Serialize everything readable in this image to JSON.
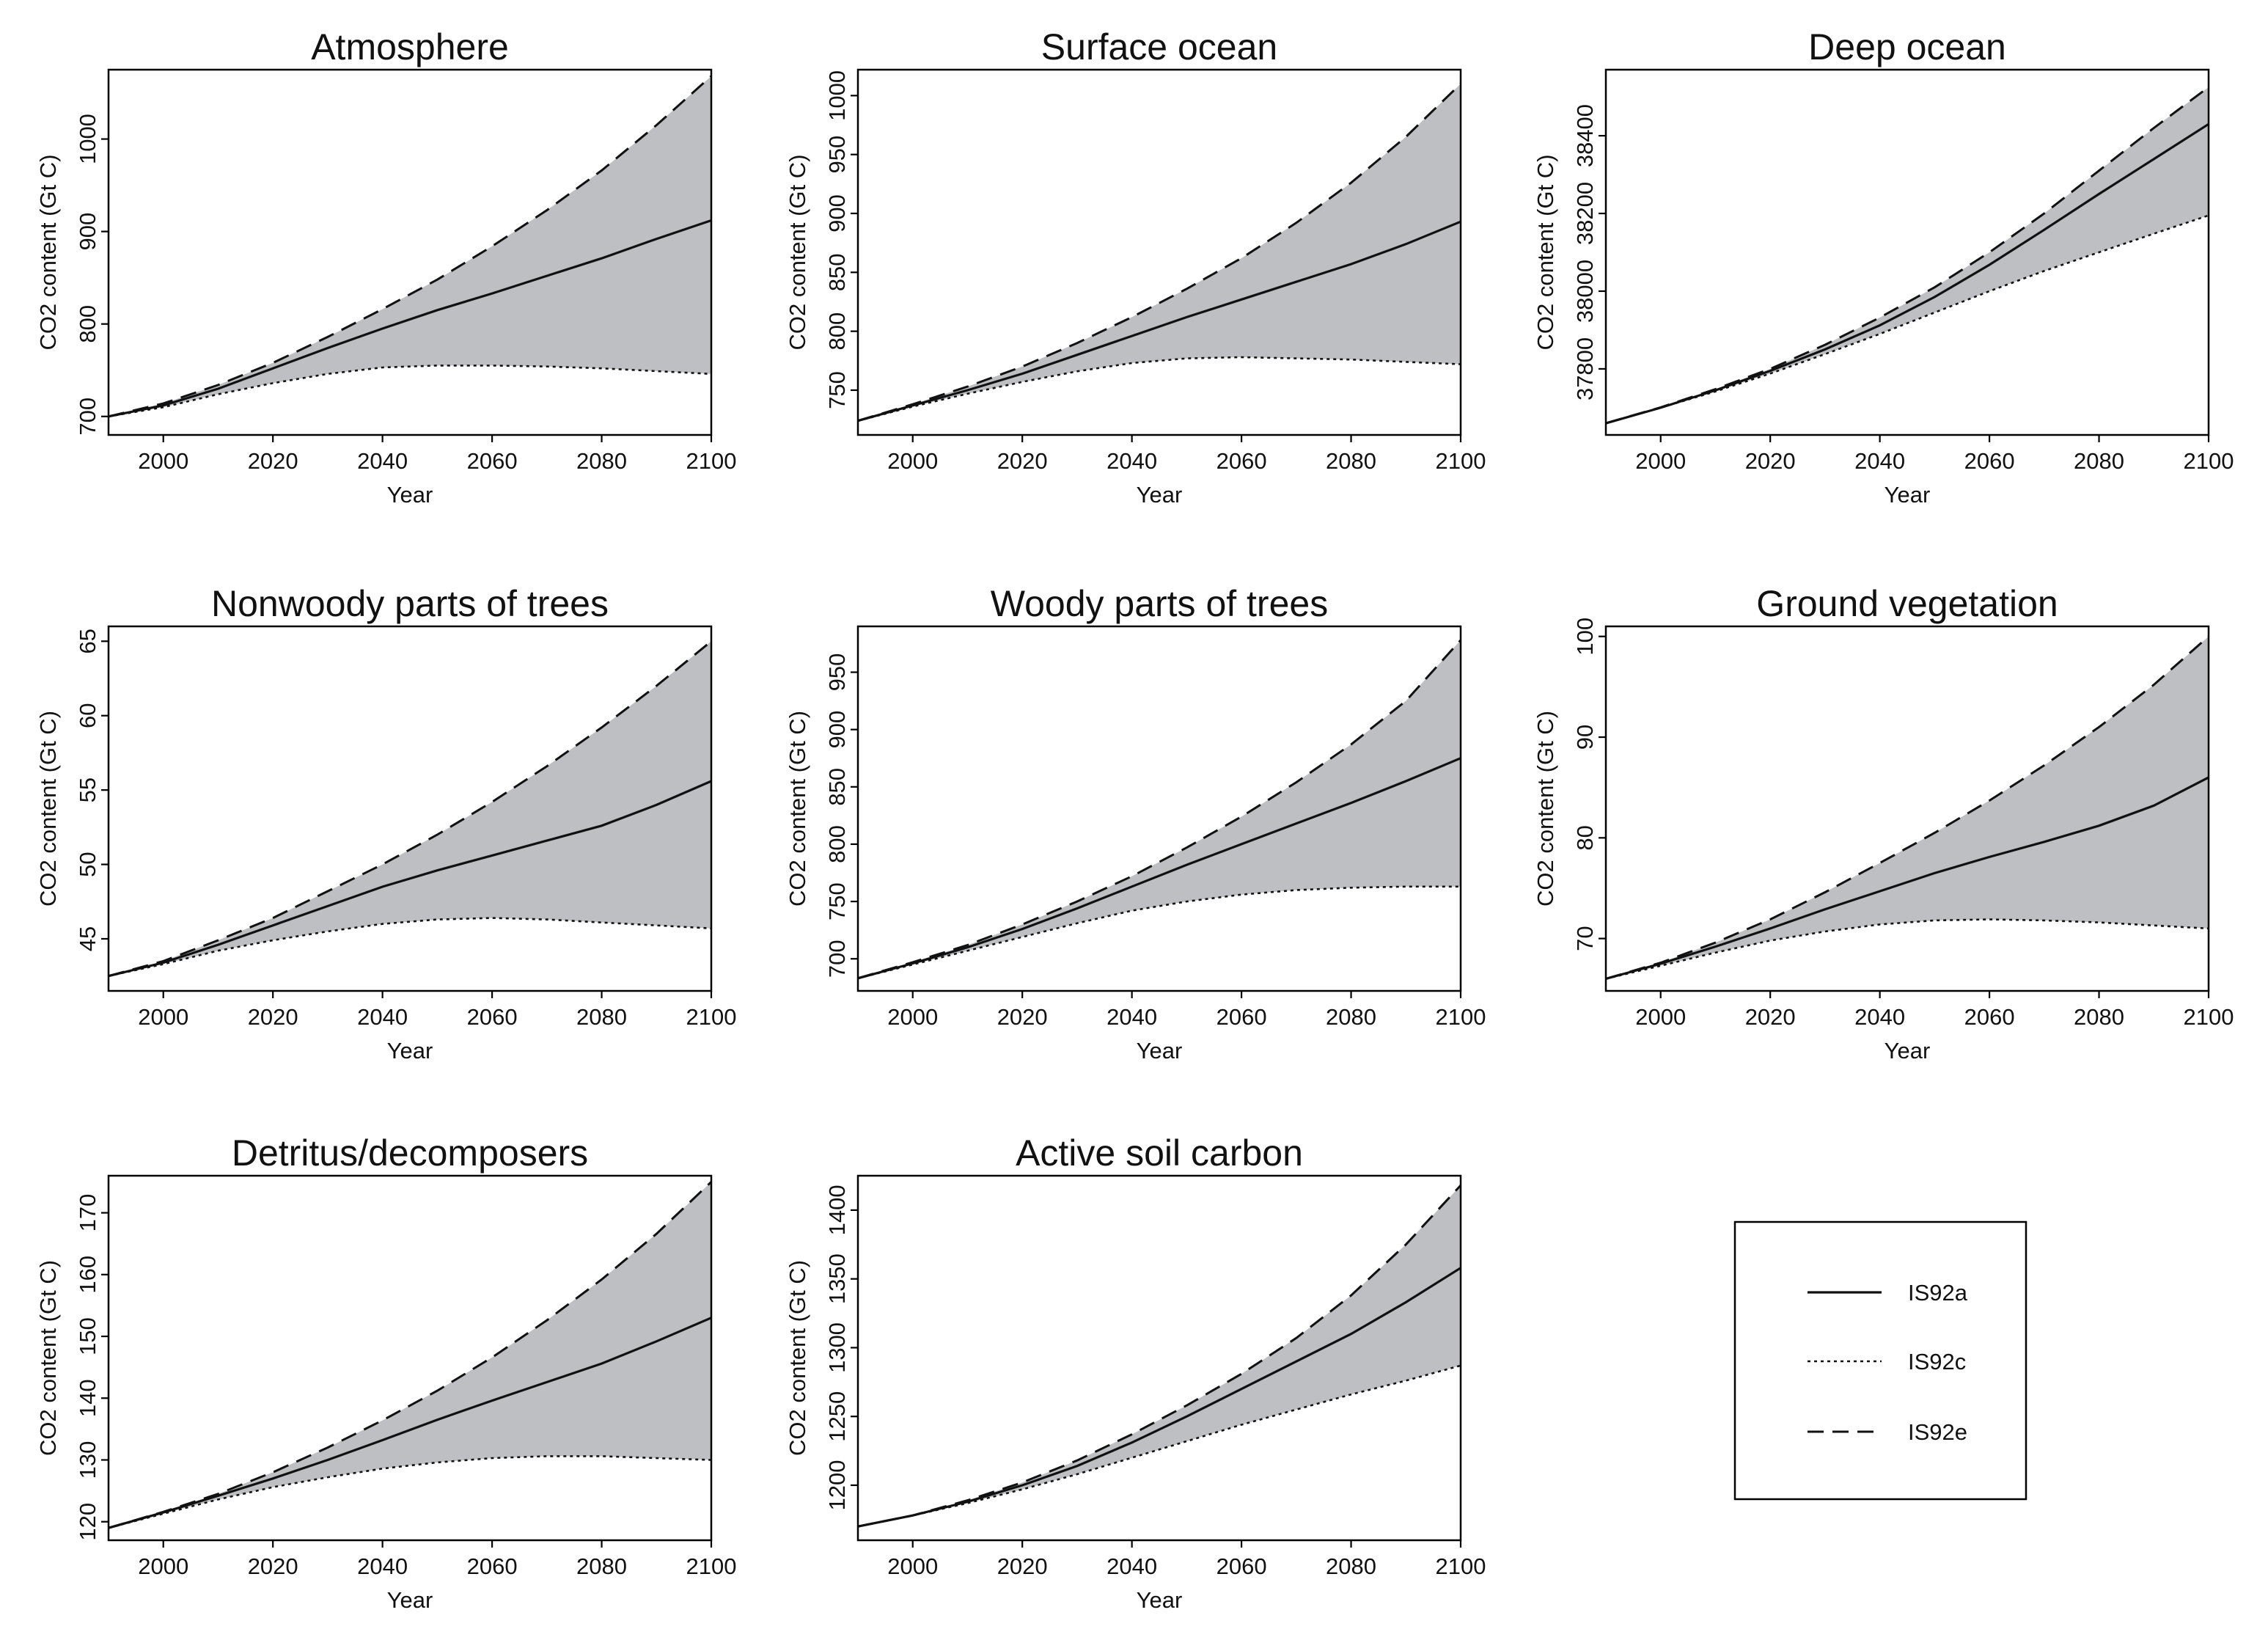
{
  "chart_data": [
    {
      "type": "line",
      "title": "Atmosphere",
      "xlabel": "Year",
      "ylabel": "CO2 content (Gt C)",
      "xlim": [
        1990,
        2100
      ],
      "ylim": [
        680,
        1075
      ],
      "xticks": [
        2000,
        2020,
        2040,
        2060,
        2080,
        2100
      ],
      "yticks": [
        700,
        800,
        900,
        1000
      ],
      "x": [
        1990,
        2000,
        2010,
        2020,
        2030,
        2040,
        2050,
        2060,
        2070,
        2080,
        2090,
        2100
      ],
      "series": [
        {
          "name": "IS92a",
          "values": [
            700,
            712,
            730,
            752,
            774,
            795,
            815,
            833,
            852,
            871,
            892,
            912
          ]
        },
        {
          "name": "IS92c",
          "values": [
            700,
            710,
            724,
            736,
            746,
            753,
            755,
            755,
            754,
            752,
            749,
            746
          ]
        },
        {
          "name": "IS92e",
          "values": [
            700,
            714,
            734,
            758,
            786,
            816,
            848,
            884,
            923,
            966,
            1015,
            1068
          ]
        }
      ]
    },
    {
      "type": "line",
      "title": "Surface ocean",
      "xlabel": "Year",
      "ylabel": "CO2 content (Gt C)",
      "xlim": [
        1990,
        2100
      ],
      "ylim": [
        712,
        1022
      ],
      "xticks": [
        2000,
        2020,
        2040,
        2060,
        2080,
        2100
      ],
      "yticks": [
        750,
        800,
        850,
        900,
        950,
        1000
      ],
      "x": [
        1990,
        2000,
        2010,
        2020,
        2030,
        2040,
        2050,
        2060,
        2070,
        2080,
        2090,
        2100
      ],
      "series": [
        {
          "name": "IS92a",
          "values": [
            724,
            737,
            750,
            764,
            780,
            796,
            812,
            827,
            842,
            857,
            874,
            893
          ]
        },
        {
          "name": "IS92c",
          "values": [
            724,
            736,
            747,
            757,
            766,
            773,
            777,
            778,
            777,
            776,
            774,
            772
          ]
        },
        {
          "name": "IS92e",
          "values": [
            724,
            738,
            753,
            770,
            790,
            812,
            836,
            862,
            892,
            926,
            965,
            1010
          ]
        }
      ]
    },
    {
      "type": "line",
      "title": "Deep ocean",
      "xlabel": "Year",
      "ylabel": "CO2 content (Gt C)",
      "xlim": [
        1990,
        2100
      ],
      "ylim": [
        37630,
        38570
      ],
      "xticks": [
        2000,
        2020,
        2040,
        2060,
        2080,
        2100
      ],
      "yticks": [
        37800,
        38000,
        38200,
        38400
      ],
      "x": [
        1990,
        2000,
        2010,
        2020,
        2030,
        2040,
        2050,
        2060,
        2070,
        2080,
        2090,
        2100
      ],
      "series": [
        {
          "name": "IS92a",
          "values": [
            37660,
            37700,
            37745,
            37795,
            37850,
            37912,
            37985,
            38068,
            38158,
            38250,
            38340,
            38430
          ]
        },
        {
          "name": "IS92c",
          "values": [
            37660,
            37700,
            37742,
            37788,
            37838,
            37890,
            37945,
            38000,
            38052,
            38100,
            38148,
            38195
          ]
        },
        {
          "name": "IS92e",
          "values": [
            37660,
            37701,
            37748,
            37800,
            37862,
            37932,
            38010,
            38100,
            38200,
            38310,
            38420,
            38525
          ]
        }
      ]
    },
    {
      "type": "line",
      "title": "Nonwoody parts of trees",
      "xlabel": "Year",
      "ylabel": "CO2 content (Gt C)",
      "xlim": [
        1990,
        2100
      ],
      "ylim": [
        41.5,
        66
      ],
      "xticks": [
        2000,
        2020,
        2040,
        2060,
        2080,
        2100
      ],
      "yticks": [
        45,
        50,
        55,
        60,
        65
      ],
      "x": [
        1990,
        2000,
        2010,
        2020,
        2030,
        2040,
        2050,
        2060,
        2070,
        2080,
        2090,
        2100
      ],
      "series": [
        {
          "name": "IS92a",
          "values": [
            42.5,
            43.4,
            44.6,
            45.9,
            47.2,
            48.5,
            49.6,
            50.6,
            51.6,
            52.6,
            54.0,
            55.6
          ]
        },
        {
          "name": "IS92c",
          "values": [
            42.5,
            43.3,
            44.2,
            44.9,
            45.5,
            46.0,
            46.3,
            46.4,
            46.3,
            46.1,
            45.9,
            45.7
          ]
        },
        {
          "name": "IS92e",
          "values": [
            42.5,
            43.5,
            44.9,
            46.4,
            48.2,
            50.0,
            52.0,
            54.2,
            56.6,
            59.2,
            62.0,
            65.0
          ]
        }
      ]
    },
    {
      "type": "line",
      "title": "Woody parts of trees",
      "xlabel": "Year",
      "ylabel": "CO2 content (Gt C)",
      "xlim": [
        1990,
        2100
      ],
      "ylim": [
        672,
        990
      ],
      "xticks": [
        2000,
        2020,
        2040,
        2060,
        2080,
        2100
      ],
      "yticks": [
        700,
        750,
        800,
        850,
        900,
        950
      ],
      "x": [
        1990,
        2000,
        2010,
        2020,
        2030,
        2040,
        2050,
        2060,
        2070,
        2080,
        2090,
        2100
      ],
      "series": [
        {
          "name": "IS92a",
          "values": [
            683,
            696,
            710,
            726,
            744,
            763,
            782,
            800,
            818,
            836,
            855,
            875
          ]
        },
        {
          "name": "IS92c",
          "values": [
            683,
            695,
            707,
            719,
            731,
            742,
            750,
            756,
            760,
            762,
            763,
            763
          ]
        },
        {
          "name": "IS92e",
          "values": [
            683,
            697,
            712,
            730,
            750,
            772,
            797,
            824,
            854,
            887,
            925,
            978
          ]
        }
      ]
    },
    {
      "type": "line",
      "title": "Ground vegetation",
      "xlabel": "Year",
      "ylabel": "CO2 content (Gt C)",
      "xlim": [
        1990,
        2100
      ],
      "ylim": [
        64.8,
        101
      ],
      "xticks": [
        2000,
        2020,
        2040,
        2060,
        2080,
        2100
      ],
      "yticks": [
        70,
        80,
        90,
        100
      ],
      "x": [
        1990,
        2000,
        2010,
        2020,
        2030,
        2040,
        2050,
        2060,
        2070,
        2080,
        2090,
        2100
      ],
      "series": [
        {
          "name": "IS92a",
          "values": [
            66,
            67.5,
            69.2,
            71.0,
            72.9,
            74.7,
            76.5,
            78.1,
            79.6,
            81.2,
            83.2,
            86
          ]
        },
        {
          "name": "IS92c",
          "values": [
            66,
            67.3,
            68.6,
            69.8,
            70.7,
            71.4,
            71.8,
            71.9,
            71.8,
            71.6,
            71.3,
            71
          ]
        },
        {
          "name": "IS92e",
          "values": [
            66,
            67.6,
            69.6,
            71.9,
            74.6,
            77.5,
            80.5,
            83.7,
            87.2,
            91.0,
            95.2,
            100
          ]
        }
      ]
    },
    {
      "type": "line",
      "title": "Detritus/decomposers",
      "xlabel": "Year",
      "ylabel": "CO2 content (Gt C)",
      "xlim": [
        1990,
        2100
      ],
      "ylim": [
        117,
        176
      ],
      "xticks": [
        2000,
        2020,
        2040,
        2060,
        2080,
        2100
      ],
      "yticks": [
        120,
        130,
        140,
        150,
        160,
        170
      ],
      "x": [
        1990,
        2000,
        2010,
        2020,
        2030,
        2040,
        2050,
        2060,
        2070,
        2080,
        2090,
        2100
      ],
      "series": [
        {
          "name": "IS92a",
          "values": [
            119,
            121.5,
            124.2,
            127.0,
            130.0,
            133.2,
            136.5,
            139.6,
            142.6,
            145.6,
            149.2,
            153
          ]
        },
        {
          "name": "IS92c",
          "values": [
            119,
            121.3,
            123.6,
            125.6,
            127.2,
            128.6,
            129.6,
            130.3,
            130.6,
            130.6,
            130.3,
            130
          ]
        },
        {
          "name": "IS92e",
          "values": [
            119,
            121.6,
            124.5,
            128.0,
            132.0,
            136.4,
            141.2,
            146.6,
            152.6,
            159.2,
            166.6,
            175
          ]
        }
      ]
    },
    {
      "type": "line",
      "title": "Active soil carbon",
      "xlabel": "Year",
      "ylabel": "CO2 content (Gt C)",
      "xlim": [
        1990,
        2100
      ],
      "ylim": [
        1160,
        1425
      ],
      "xticks": [
        2000,
        2020,
        2040,
        2060,
        2080,
        2100
      ],
      "yticks": [
        1200,
        1250,
        1300,
        1350,
        1400
      ],
      "x": [
        1990,
        2000,
        2010,
        2020,
        2030,
        2040,
        2050,
        2060,
        2070,
        2080,
        2090,
        2100
      ],
      "series": [
        {
          "name": "IS92a",
          "values": [
            1170,
            1178,
            1188,
            1200,
            1214,
            1231,
            1250,
            1270,
            1290,
            1310,
            1333,
            1358
          ]
        },
        {
          "name": "IS92c",
          "values": [
            1170,
            1178,
            1187,
            1197,
            1208,
            1220,
            1232,
            1244,
            1255,
            1266,
            1276,
            1287
          ]
        },
        {
          "name": "IS92e",
          "values": [
            1170,
            1178,
            1189,
            1202,
            1218,
            1237,
            1258,
            1281,
            1307,
            1338,
            1375,
            1418
          ]
        }
      ]
    }
  ],
  "legend": {
    "entries": [
      {
        "name": "IS92a",
        "style": "solid"
      },
      {
        "name": "IS92c",
        "style": "dotted"
      },
      {
        "name": "IS92e",
        "style": "dashed"
      }
    ]
  },
  "colors": {
    "band": "#bdbfc2",
    "line": "#111111"
  }
}
